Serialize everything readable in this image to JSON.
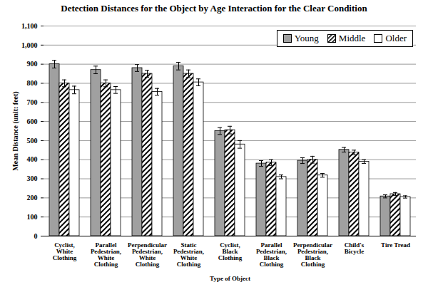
{
  "chart_data": {
    "type": "bar",
    "title": "Detection Distances for the Object by Age Interaction for the Clear Condition",
    "x_label": "Type of Object",
    "y_label": "Mean Distance (unit: feet)",
    "categories": [
      "Cyclist, White Clothing",
      "Parallel Pedestrian, White Clothing",
      "Perpendicular Pedestrian, White Clothing",
      "Static Pedestrian, White Clothing",
      "Cyclist, Black Clothing",
      "Parallel Pedestrian, Black Clothing",
      "Perpendicular Pedestrian, Black Clothing",
      "Child's Bicycle",
      "Tire Tread"
    ],
    "series": [
      {
        "name": "Young",
        "color": "#a0a0a0",
        "values": [
          900,
          870,
          880,
          890,
          550,
          380,
          395,
          452,
          208
        ],
        "errors": [
          20,
          20,
          18,
          20,
          18,
          15,
          15,
          12,
          8
        ]
      },
      {
        "name": "Middle",
        "color": "#000000",
        "line_style": "diagonal",
        "values": [
          800,
          800,
          850,
          850,
          555,
          385,
          400,
          438,
          220
        ],
        "errors": [
          18,
          18,
          18,
          20,
          20,
          15,
          18,
          12,
          8
        ]
      },
      {
        "name": "Older",
        "color": "#ffffff",
        "values": [
          765,
          765,
          755,
          805,
          480,
          310,
          318,
          390,
          205
        ],
        "errors": [
          20,
          18,
          18,
          18,
          20,
          10,
          10,
          10,
          6
        ]
      }
    ],
    "ylim": [
      0,
      1100
    ],
    "yticks": [
      0,
      100,
      200,
      300,
      400,
      500,
      600,
      700,
      800,
      900,
      1000,
      1100
    ],
    "grid": true,
    "legend": "top-right"
  }
}
